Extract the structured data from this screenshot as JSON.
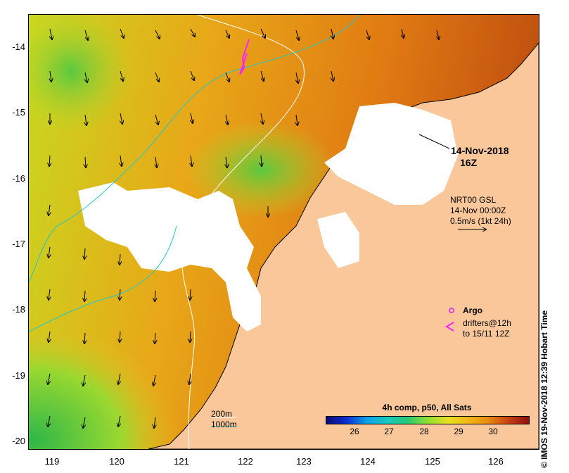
{
  "map": {
    "date_line1": "14-Nov-2018",
    "date_line2": "16Z",
    "vector_legend": {
      "line1": "NRT00 GSL",
      "line2": "14-Nov 00:00Z",
      "line3": "0.5m/s (1kt 24h)"
    },
    "argo_label": "Argo",
    "drifters_line1": "drifters@12h",
    "drifters_line2": "to 15/11 12Z",
    "isobath_200": "200m",
    "isobath_1000": "1000m",
    "colors": {
      "land": "#f9c79a",
      "cloud": "#ffffff",
      "isobath_200": "#ffffff",
      "isobath_1000": "#20c8c8",
      "argo": "#e040e0",
      "drifter": "#ff20ff"
    }
  },
  "axes": {
    "y_ticks": [
      "-14",
      "-15",
      "-16",
      "-17",
      "-18",
      "-19",
      "-20"
    ],
    "x_ticks": [
      "119",
      "120",
      "121",
      "122",
      "123",
      "124",
      "125",
      "126"
    ]
  },
  "colorbar": {
    "title": "4h comp, p50, All Sats",
    "ticks": [
      "26",
      "27",
      "28",
      "29",
      "30"
    ]
  },
  "credit": "© IMOS 19-Nov-2018 12:39 Hobart Time"
}
